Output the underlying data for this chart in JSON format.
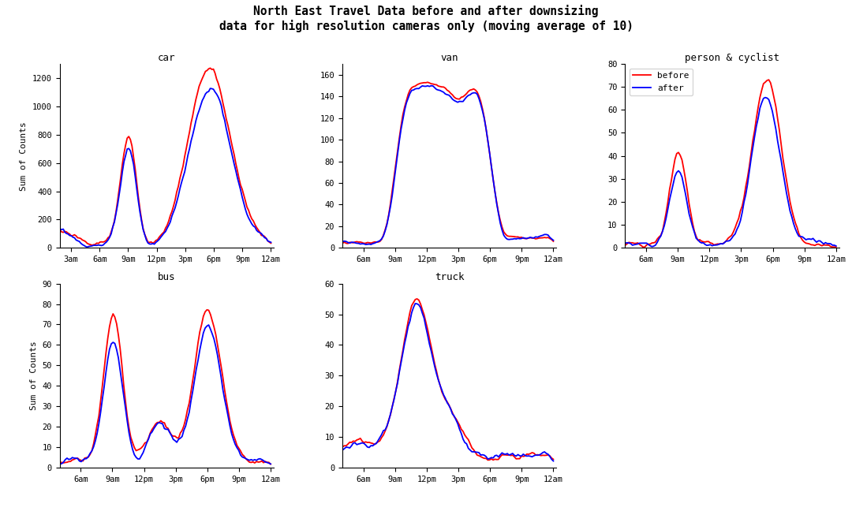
{
  "title_line1": "North East Travel Data before and after downsizing",
  "title_line2": "data for high resolution cameras only (moving average of 10)",
  "subplots": [
    "car",
    "van",
    "person & cyclist",
    "bus",
    "truck"
  ],
  "ylabel": "Sum of Counts",
  "legend_labels": [
    "before",
    "after"
  ],
  "color_before": "red",
  "color_after": "blue",
  "car_ylim": [
    0,
    1300
  ],
  "van_ylim": [
    0,
    170
  ],
  "person_ylim": [
    0,
    80
  ],
  "bus_ylim": [
    0,
    90
  ],
  "truck_ylim": [
    0,
    60
  ]
}
